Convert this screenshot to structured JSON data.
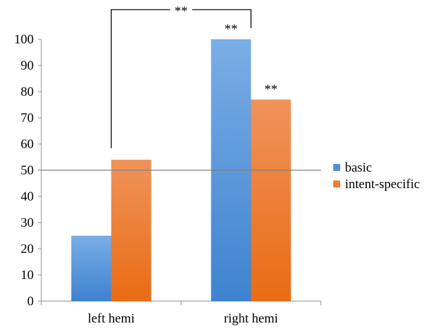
{
  "chart_data": {
    "type": "bar",
    "categories": [
      "left hemi",
      "right hemi"
    ],
    "series": [
      {
        "name": "basic",
        "values": [
          25,
          100
        ],
        "color": "#4f8fd6"
      },
      {
        "name": "intent-specific",
        "values": [
          54,
          77
        ],
        "color": "#f07d2e"
      }
    ],
    "ylim": [
      0,
      100
    ],
    "yticks": [
      0,
      10,
      20,
      30,
      40,
      50,
      60,
      70,
      80,
      90,
      100
    ],
    "reference_line": 50,
    "legend_position": "right",
    "annotations": [
      {
        "text": "**",
        "type": "bracket",
        "from": "left hemi",
        "to": "right hemi"
      },
      {
        "text": "**",
        "type": "bar",
        "category": "right hemi",
        "series": "basic"
      },
      {
        "text": "**",
        "type": "bar",
        "category": "right hemi",
        "series": "intent-specific"
      }
    ]
  }
}
